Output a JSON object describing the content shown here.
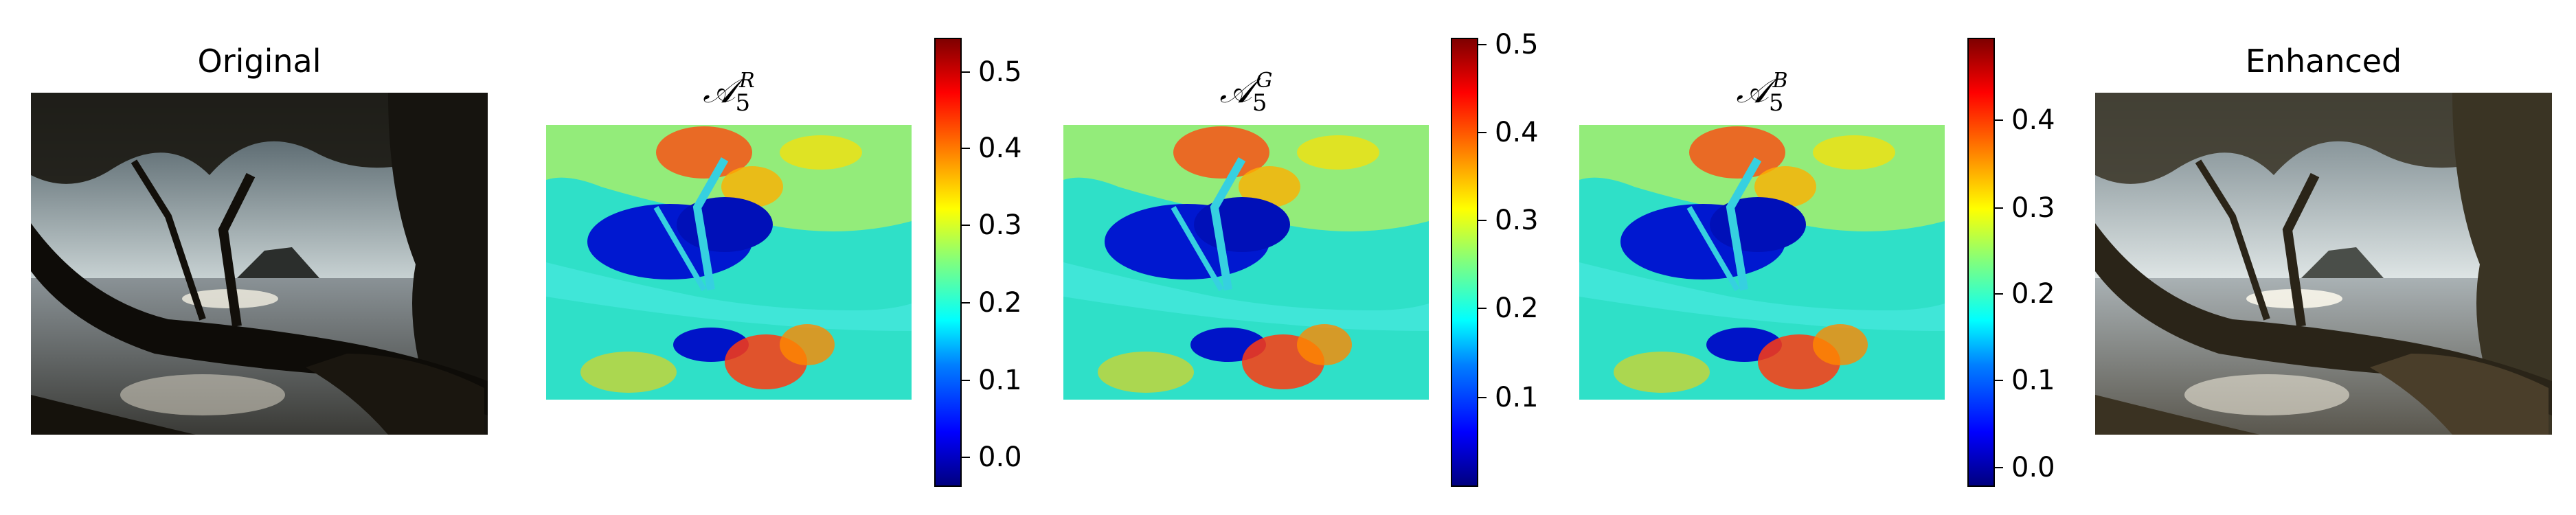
{
  "panels": {
    "original": {
      "title": "Original"
    },
    "enhanced": {
      "title": "Enhanced"
    },
    "maps": [
      {
        "symbol": "𝒜",
        "subscript": "5",
        "superscript": "R",
        "colorbar_ticks": [
          "0.5",
          "0.4",
          "0.3",
          "0.2",
          "0.1",
          "0.0"
        ]
      },
      {
        "symbol": "𝒜",
        "subscript": "5",
        "superscript": "G",
        "colorbar_ticks": [
          "0.5",
          "0.4",
          "0.3",
          "0.2",
          "0.1"
        ]
      },
      {
        "symbol": "𝒜",
        "subscript": "5",
        "superscript": "B",
        "colorbar_ticks": [
          "0.4",
          "0.3",
          "0.2",
          "0.1",
          "0.0"
        ]
      }
    ]
  },
  "colormap": "jet"
}
